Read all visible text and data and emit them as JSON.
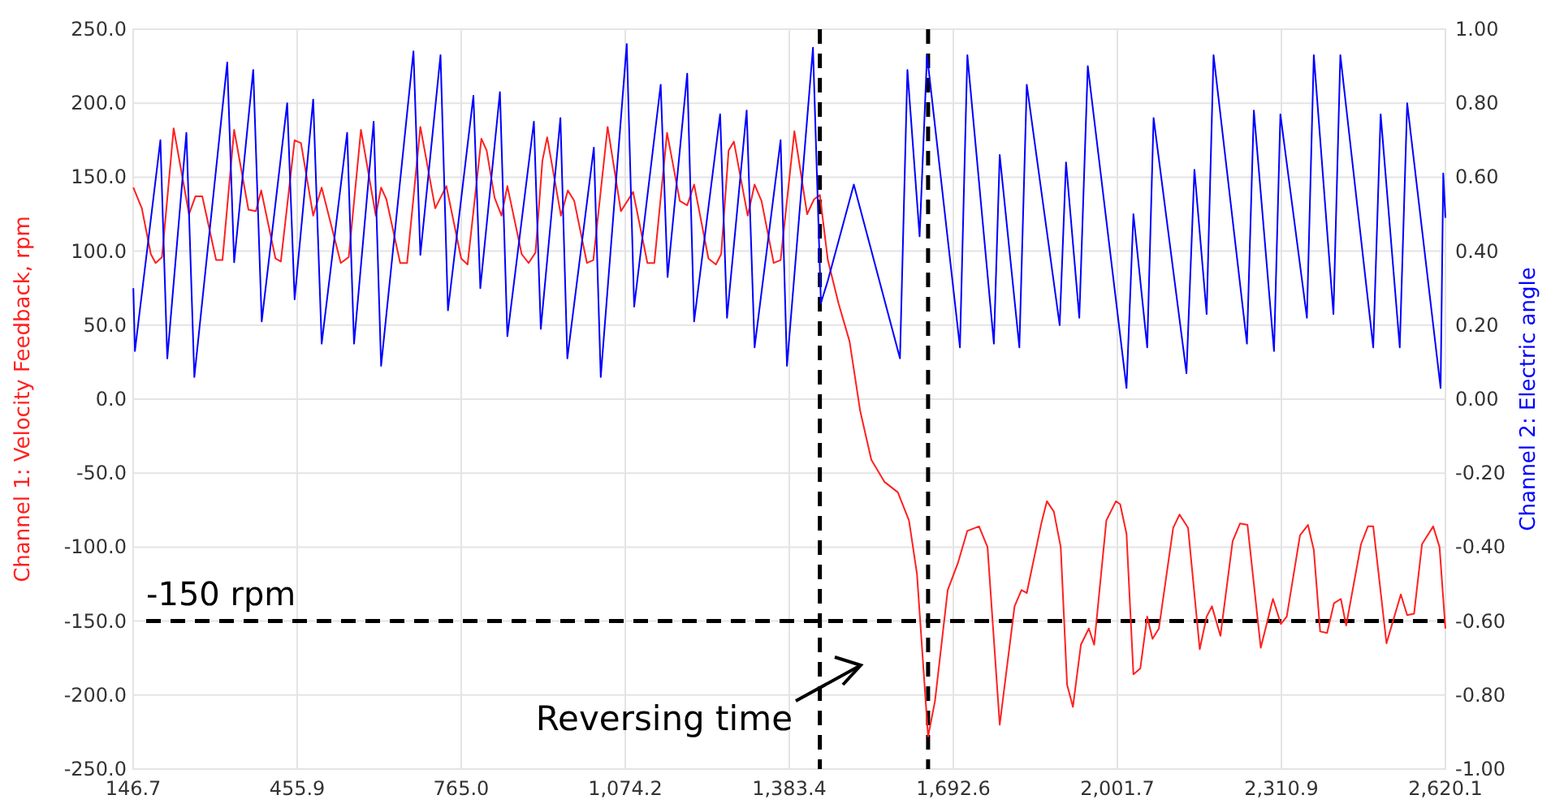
{
  "chart_data": {
    "type": "line",
    "ylabel": "Channel 1: Velocity Feedback, rpm",
    "y2label": "Channel 2: Electric angle",
    "xlim": [
      146.7,
      2620.1
    ],
    "xticks": [
      {
        "value": 146.7,
        "label": "146.7"
      },
      {
        "value": 455.9,
        "label": "455.9"
      },
      {
        "value": 765.0,
        "label": "765.0"
      },
      {
        "value": 1074.2,
        "label": "1,074.2"
      },
      {
        "value": 1383.4,
        "label": "1,383.4"
      },
      {
        "value": 1692.6,
        "label": "1,692.6"
      },
      {
        "value": 2001.7,
        "label": "2,001.7"
      },
      {
        "value": 2310.9,
        "label": "2,310.9"
      },
      {
        "value": 2620.1,
        "label": "2,620.1"
      }
    ],
    "ylim": [
      -250,
      250
    ],
    "yticks": [
      {
        "value": -250,
        "label": "-250.0"
      },
      {
        "value": -200,
        "label": "-200.0"
      },
      {
        "value": -150,
        "label": "-150.0"
      },
      {
        "value": -100,
        "label": "-100.0"
      },
      {
        "value": -50,
        "label": "-50.0"
      },
      {
        "value": 0,
        "label": "0.0"
      },
      {
        "value": 50,
        "label": "50.0"
      },
      {
        "value": 100,
        "label": "100.0"
      },
      {
        "value": 150,
        "label": "150.0"
      },
      {
        "value": 200,
        "label": "200.0"
      },
      {
        "value": 250,
        "label": "250.0"
      }
    ],
    "y2lim": [
      -1,
      1
    ],
    "y2ticks": [
      {
        "value": -1,
        "label": "-1.00"
      },
      {
        "value": -0.8,
        "label": "-0.80"
      },
      {
        "value": -0.6,
        "label": "-0.60"
      },
      {
        "value": -0.4,
        "label": "-0.40"
      },
      {
        "value": -0.2,
        "label": "-0.20"
      },
      {
        "value": 0,
        "label": "0.00"
      },
      {
        "value": 0.2,
        "label": "0.20"
      },
      {
        "value": 0.4,
        "label": "0.40"
      },
      {
        "value": 0.6,
        "label": "0.60"
      },
      {
        "value": 0.8,
        "label": "0.80"
      },
      {
        "value": 1,
        "label": "1.00"
      }
    ],
    "grid": true,
    "marker": "none",
    "line_style": "solid",
    "series": [
      {
        "color": "#ff2020",
        "x": [
          147,
          163,
          180,
          189,
          201,
          223,
          252,
          264,
          277,
          303,
          315,
          337,
          364,
          378,
          388,
          415,
          425,
          451,
          463,
          486,
          502,
          538,
          553,
          576,
          604,
          614,
          624,
          650,
          663,
          688,
          716,
          737,
          765,
          777,
          796,
          803,
          813,
          828,
          841,
          852,
          879,
          892,
          905,
          918,
          927,
          953,
          966,
          978,
          1002,
          1014,
          1041,
          1066,
          1089,
          1116,
          1129,
          1153,
          1177,
          1191,
          1204,
          1231,
          1245,
          1255,
          1269,
          1279,
          1305,
          1318,
          1331,
          1354,
          1367,
          1393,
          1417,
          1430,
          1441,
          1456,
          1476,
          1497,
          1517,
          1538,
          1563,
          1588,
          1609,
          1624,
          1645,
          1658,
          1682,
          1701,
          1719,
          1741,
          1757,
          1780,
          1808,
          1821,
          1831,
          1859,
          1869,
          1882,
          1895,
          1907,
          1918,
          1933,
          1948,
          1958,
          1981,
          1999,
          2007,
          2019,
          2032,
          2045,
          2058,
          2068,
          2080,
          2107,
          2119,
          2135,
          2157,
          2170,
          2180,
          2196,
          2219,
          2233,
          2247,
          2272,
          2295,
          2310,
          2321,
          2346,
          2361,
          2372,
          2384,
          2397,
          2410,
          2423,
          2433,
          2461,
          2474,
          2484,
          2509,
          2536,
          2548,
          2561,
          2576,
          2597,
          2609,
          2620
        ],
        "values": [
          143,
          129,
          98,
          92,
          96,
          183,
          125,
          137,
          137,
          94,
          94,
          182,
          128,
          127,
          141,
          95,
          93,
          175,
          173,
          124,
          143,
          92,
          96,
          182,
          124,
          143,
          135,
          92,
          92,
          184,
          129,
          144,
          95,
          91,
          153,
          176,
          168,
          136,
          124,
          144,
          98,
          92,
          99,
          161,
          177,
          124,
          141,
          134,
          92,
          94,
          184,
          127,
          140,
          92,
          92,
          180,
          134,
          131,
          145,
          95,
          91,
          98,
          168,
          174,
          124,
          145,
          134,
          92,
          94,
          181,
          125,
          135,
          138,
          94,
          65,
          39,
          -8,
          -41,
          -56,
          -63,
          -82,
          -118,
          -228,
          -204,
          -129,
          -111,
          -89,
          -86,
          -100,
          -220,
          -140,
          -129,
          -131,
          -83,
          -69,
          -76,
          -100,
          -193,
          -208,
          -166,
          -155,
          -166,
          -82,
          -69,
          -71,
          -91,
          -186,
          -182,
          -147,
          -162,
          -155,
          -87,
          -78,
          -87,
          -169,
          -147,
          -140,
          -160,
          -96,
          -84,
          -85,
          -168,
          -135,
          -152,
          -147,
          -92,
          -85,
          -102,
          -157,
          -158,
          -138,
          -135,
          -153,
          -98,
          -86,
          -86,
          -165,
          -132,
          -146,
          -145,
          -98,
          -86,
          -100,
          -155
        ]
      },
      {
        "color": "#0000ff",
        "axis": "y2",
        "x": [
          147,
          150,
          198,
          211,
          247,
          262,
          324,
          337,
          373,
          389,
          437,
          451,
          486,
          502,
          550,
          563,
          600,
          614,
          675,
          688,
          726,
          740,
          788,
          801,
          838,
          852,
          902,
          915,
          952,
          965,
          1015,
          1028,
          1077,
          1091,
          1141,
          1154,
          1191,
          1204,
          1253,
          1266,
          1303,
          1318,
          1367,
          1379,
          1428,
          1443,
          1456,
          1505,
          1592,
          1606,
          1629,
          1643,
          1705,
          1719,
          1769,
          1780,
          1817,
          1831,
          1893,
          1905,
          1930,
          1946,
          2019,
          2032,
          2058,
          2070,
          2132,
          2147,
          2170,
          2183,
          2246,
          2259,
          2297,
          2309,
          2359,
          2372,
          2409,
          2422,
          2484,
          2498,
          2534,
          2548,
          2611,
          2616,
          2620
        ],
        "values": [
          0.3,
          0.13,
          0.7,
          0.11,
          0.72,
          0.06,
          0.91,
          0.37,
          0.89,
          0.21,
          0.8,
          0.27,
          0.81,
          0.15,
          0.72,
          0.15,
          0.75,
          0.09,
          0.94,
          0.39,
          0.93,
          0.24,
          0.82,
          0.3,
          0.83,
          0.17,
          0.75,
          0.19,
          0.76,
          0.11,
          0.68,
          0.06,
          0.96,
          0.25,
          0.85,
          0.33,
          0.88,
          0.21,
          0.77,
          0.22,
          0.78,
          0.14,
          0.7,
          0.09,
          0.95,
          0.26,
          0.32,
          0.58,
          0.11,
          0.89,
          0.44,
          0.93,
          0.14,
          0.93,
          0.15,
          0.66,
          0.14,
          0.85,
          0.2,
          0.64,
          0.22,
          0.9,
          0.03,
          0.5,
          0.14,
          0.76,
          0.07,
          0.62,
          0.23,
          0.93,
          0.15,
          0.78,
          0.13,
          0.77,
          0.22,
          0.93,
          0.23,
          0.93,
          0.14,
          0.77,
          0.14,
          0.8,
          0.03,
          0.61,
          0.49
        ]
      }
    ],
    "ref_lines": [
      {
        "axis": "y",
        "value": -150,
        "label": "-150 rpm",
        "color": "#000000",
        "line_style": "dashed"
      },
      {
        "axis": "x",
        "value": 1441,
        "color": "#000000",
        "line_style": "dashed"
      },
      {
        "axis": "x",
        "value": 1645,
        "color": "#000000",
        "line_style": "dashed"
      }
    ],
    "annotations": [
      "Reversing time"
    ]
  }
}
